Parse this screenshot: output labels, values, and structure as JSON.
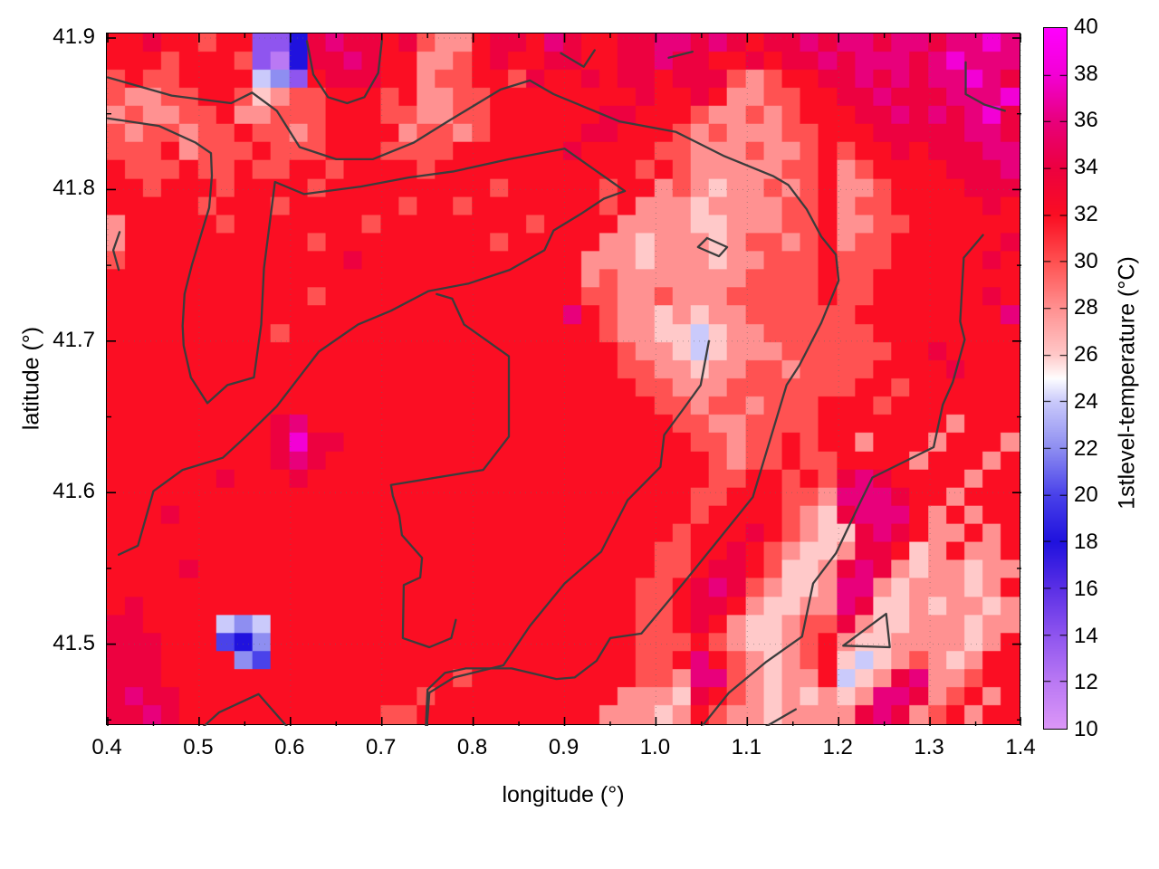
{
  "chart_data": {
    "type": "heatmap",
    "title": "",
    "xlabel": "longitude (°)",
    "ylabel": "latitude (°)",
    "colorbar_label": "1stlevel-temperature (°C)",
    "x_range": [
      0.399,
      1.4
    ],
    "y_range": [
      41.446,
      41.903
    ],
    "grid_on": true,
    "x_ticks": {
      "labels": [
        "0.4",
        "0.5",
        "0.6",
        "0.7",
        "0.8",
        "0.9",
        "1.0",
        "1.1",
        "1.2",
        "1.3",
        "1.4"
      ],
      "values": [
        0.4,
        0.5,
        0.6,
        0.7,
        0.8,
        0.9,
        1.0,
        1.1,
        1.2,
        1.3,
        1.4
      ],
      "minor_values": [
        0.45,
        0.55,
        0.65,
        0.75,
        0.85,
        0.95,
        1.05,
        1.15,
        1.25,
        1.35
      ]
    },
    "y_ticks": {
      "labels": [
        "41.9",
        "41.8",
        "41.7",
        "41.6",
        "41.5"
      ],
      "values": [
        41.9,
        41.8,
        41.7,
        41.6,
        41.5
      ],
      "minor_values": [
        41.85,
        41.75,
        41.65,
        41.55,
        41.45
      ]
    },
    "colorbar": {
      "min": 10,
      "max": 40,
      "tick_labels": [
        "40",
        "38",
        "36",
        "34",
        "32",
        "30",
        "28",
        "26",
        "24",
        "22",
        "20",
        "18",
        "16",
        "14",
        "12",
        "10"
      ],
      "tick_values": [
        40,
        38,
        36,
        34,
        32,
        30,
        28,
        26,
        24,
        22,
        20,
        18,
        16,
        14,
        12,
        10
      ],
      "palette_stops": [
        [
          10,
          "#DC97F8"
        ],
        [
          12,
          "#BA79F4"
        ],
        [
          14,
          "#8F55EF"
        ],
        [
          16,
          "#5B30E6"
        ],
        [
          18,
          "#2012DE"
        ],
        [
          20,
          "#4A42EA"
        ],
        [
          22,
          "#8E8EF1"
        ],
        [
          24,
          "#CACAFB"
        ],
        [
          25,
          "#FFFFFF"
        ],
        [
          26,
          "#FFC9C9"
        ],
        [
          28,
          "#FF9191"
        ],
        [
          30,
          "#FF5252"
        ],
        [
          32,
          "#FB0E23"
        ],
        [
          34,
          "#ED0140"
        ],
        [
          36,
          "#E8007B"
        ],
        [
          38,
          "#F300D5"
        ],
        [
          40,
          "#FF00FF"
        ]
      ]
    },
    "heatmap_grid": {
      "cols": 50,
      "rows": 38,
      "encoding": "one hex char per cell; temperature_C = 10 + 2 * hexValue",
      "rows_data": [
        "BBCBBABB224CDCCBCA99BCCBDCBBCCDDCDCBCCDCDDCDDCDDED",
        "BBBABBBA214CCDCBB99ABCBBCCBBCCDCCBBCBCCDCDDDCDEDDD",
        "ABAABBBB762BCCCBB9AABBACBBCBCCBCCCA9ABBCCDCDCDDEDC",
        "A99AABBA89AABBBAB99AABBBBBBBBCBBCB99AABBCCDCCCDDDE",
        "9A99AAB99AAABBBAA99AABBBBBBCCBBBA99A9ABBBCCDCDCDEC",
        "A9AA9AABAA9ABBBB9AA9ABBBBBCCBBBA9A999AABBBCCCCCDDC",
        "AAAB9AAABAAABBBAAAABBBBBBCBBBBAA999A99ABABBCBCCCDD",
        "BAAABAABAABBABBBBABBBBBBBBBBBABA99999AAB9ABBBBCCCD",
        "BBABBBABBBBABBBBBBBBBABBBBBABB9A9899A9AB99ABBBBCCC",
        "BBBBBABBBABBBBBBABBABBBBBBBAB99989999AAB9AABBBBBCB",
        "9BBBBBABBBBBBBABBBBBBBBABBBB999988999AAB99AABBBBBB",
        "9BBBBBBBBBBABBBBBBBBBABBBBB99899989AA9AB9AABBBBBBC",
        "ABBBBBBBBBBBBCBBBBBBBBBBBB9998999899AAABAAABBBBBCB",
        "BBBBBBBBBBBBBBBBBBBBBBBBBB9A9999999AAAABAABBBBBBBB",
        "BBBBBBBBBBBABBBBBBBBBBBBBBAA99A999AAAAABAABBBBBBCB",
        "BBBBBBBBBBBBBBBBBBBBBBBBBDBA9989899AAAAAABBBBBBBBD",
        "BBBBBBBBBABBBBBBBBBBBBBBBBBA99887899AAAAAABBBBBBBB",
        "BBBBBBBBBBBBBBBBBBBBBBBBBBBBA99878999AAAAAABBCBBBB",
        "BBBBBBBBBBBBBBBBBBBBBBBBBBBBAA99899AA9AAAABBBBCBBB",
        "BBBBBBBBBBBBBBBBBBBBBBBBBBBBBAA999AAAAAAABBABBBBBB",
        "BBBBBBBBBBBBBBBBBBBBBBBBBBBBBBAA9AA9AAABBBABBBBBBB",
        "BBBBBBBBBCDBBBBBBBBBBBBBBBBBBBBAA99AAAABBBBBBB9BBB",
        "BBBBBBBBBCECCBBBBBBBBBBBBBBBBBBBAA9AABABB9BBB9BBB9",
        "BBBBBBBBBCDCBBBBBBBBBBBBBBBBBBBBBA9AABAABBBB9BBB9B",
        "BBBBBBCBBBCBBBBBBBBBBBBBBBBBBBBBBAABBABACDCBBBB9BB",
        "BBBBBBBBBBBBBBBBBBBBBBBBBBBBBBBBAABBBAA9DDDCBB9BBB",
        "BBBCBBBBBBBBBBBBBBBBBBBBBBBBBBBBABBBBA98CDDDB9B9BB",
        "BBBBBBBBBBBBBBBBBBBBBBBBBBBBBBBABBBCBA988CDCB99B9B",
        "BBBBBBBBBBBBBBBBBBBBBBBBBBBBBBAABBCBA9889CCB89B99B",
        "BBBBCBBBBBBBBBBBBBBBBBBBBBBBBBAABCCBA889CDC9899899",
        "BBBBBBBBBBBBBBBBBBBBBBBBBBBBBAABCDCA9889DD9899989B",
        "BCBBBBBBBBBBBBBBBBBBBBBBBBBBBAABCCB98899DC88989989",
        "CCBBBB767BBBBBBBBBBBBBBBBBBBBAABCB9889AAC988999899",
        "CCCBBB546BBBBBBBBBBBBBBBBBBBBAAABA9889AB988999989B",
        "CCCBBBB65BBBBBBBBBBBBBBBBBBBBAABDBA989AB8789A989BB",
        "CCCBBBBBBBBBBBBBBBBABBBBBBBBBAA9DDA9899B789CD99ABB",
        "CDCCBBBBBBBBBBBBBABBBBBBBBBB9998CBA9898989DDC9AB9B",
        "CCDCBBBBBBBBBBBAABBBBBBBBBB99989BA9989999CDC9AB9BB"
      ]
    },
    "contours": {
      "color": "#3c3c3c",
      "width": 2.3,
      "lines": [
        {
          "name": "contour-top-long",
          "points": [
            [
              0.4,
              41.874
            ],
            [
              0.47,
              41.862
            ],
            [
              0.535,
              41.857
            ],
            [
              0.558,
              41.864
            ],
            [
              0.585,
              41.852
            ],
            [
              0.61,
              41.828
            ],
            [
              0.65,
              41.82
            ],
            [
              0.69,
              41.82
            ],
            [
              0.735,
              41.831
            ],
            [
              0.775,
              41.846
            ],
            [
              0.83,
              41.866
            ],
            [
              0.862,
              41.872
            ],
            [
              0.888,
              41.863
            ],
            [
              0.96,
              41.845
            ],
            [
              1.022,
              41.838
            ],
            [
              1.075,
              41.822
            ],
            [
              1.128,
              41.809
            ],
            [
              1.145,
              41.803
            ],
            [
              1.165,
              41.787
            ],
            [
              1.181,
              41.769
            ],
            [
              1.197,
              41.757
            ],
            [
              1.2,
              41.74
            ],
            [
              1.181,
              41.712
            ],
            [
              1.157,
              41.684
            ],
            [
              1.143,
              41.671
            ],
            [
              1.106,
              41.597
            ],
            [
              1.07,
              41.57
            ],
            [
              1.031,
              41.541
            ],
            [
              0.984,
              41.507
            ],
            [
              0.95,
              41.504
            ],
            [
              0.935,
              41.489
            ],
            [
              0.911,
              41.478
            ],
            [
              0.891,
              41.477
            ],
            [
              0.842,
              41.484
            ],
            [
              0.792,
              41.484
            ],
            [
              0.769,
              41.481
            ],
            [
              0.75,
              41.47
            ],
            [
              0.748,
              41.443
            ]
          ]
        },
        {
          "name": "contour-left-pocket",
          "points": [
            [
              0.4,
              41.847
            ],
            [
              0.456,
              41.842
            ],
            [
              0.496,
              41.831
            ],
            [
              0.513,
              41.824
            ],
            [
              0.514,
              41.809
            ],
            [
              0.511,
              41.788
            ],
            [
              0.492,
              41.75
            ],
            [
              0.484,
              41.731
            ],
            [
              0.482,
              41.71
            ],
            [
              0.483,
              41.697
            ],
            [
              0.491,
              41.676
            ],
            [
              0.509,
              41.659
            ],
            [
              0.531,
              41.671
            ],
            [
              0.56,
              41.676
            ],
            [
              0.568,
              41.711
            ],
            [
              0.571,
              41.748
            ],
            [
              0.583,
              41.805
            ],
            [
              0.615,
              41.797
            ],
            [
              0.677,
              41.802
            ],
            [
              0.73,
              41.808
            ],
            [
              0.779,
              41.812
            ],
            [
              0.839,
              41.82
            ],
            [
              0.9,
              41.827
            ],
            [
              0.966,
              41.799
            ],
            [
              0.943,
              41.794
            ],
            [
              0.918,
              41.784
            ],
            [
              0.888,
              41.773
            ],
            [
              0.878,
              41.76
            ],
            [
              0.84,
              41.747
            ],
            [
              0.795,
              41.738
            ],
            [
              0.751,
              41.733
            ],
            [
              0.71,
              41.72
            ],
            [
              0.674,
              41.711
            ],
            [
              0.631,
              41.693
            ],
            [
              0.585,
              41.657
            ],
            [
              0.551,
              41.637
            ],
            [
              0.526,
              41.623
            ],
            [
              0.482,
              41.615
            ],
            [
              0.45,
              41.601
            ],
            [
              0.433,
              41.565
            ],
            [
              0.412,
              41.559
            ]
          ]
        },
        {
          "name": "contour-center-loop",
          "points": [
            [
              0.76,
              41.731
            ],
            [
              0.777,
              41.728
            ],
            [
              0.79,
              41.711
            ],
            [
              0.839,
              41.69
            ],
            [
              0.839,
              41.637
            ],
            [
              0.811,
              41.615
            ],
            [
              0.71,
              41.605
            ],
            [
              0.712,
              41.598
            ],
            [
              0.719,
              41.585
            ],
            [
              0.722,
              41.572
            ],
            [
              0.744,
              41.557
            ],
            [
              0.742,
              41.544
            ],
            [
              0.724,
              41.539
            ],
            [
              0.723,
              41.504
            ],
            [
              0.752,
              41.498
            ],
            [
              0.776,
              41.504
            ],
            [
              0.781,
              41.516
            ]
          ]
        },
        {
          "name": "contour-right-diagonal",
          "points": [
            [
              1.058,
              41.7
            ],
            [
              1.049,
              41.671
            ],
            [
              1.031,
              41.656
            ],
            [
              1.009,
              41.638
            ],
            [
              1.005,
              41.617
            ],
            [
              0.969,
              41.595
            ],
            [
              0.94,
              41.561
            ],
            [
              0.9,
              41.54
            ],
            [
              0.862,
              41.512
            ],
            [
              0.833,
              41.486
            ],
            [
              0.779,
              41.478
            ],
            [
              0.752,
              41.468
            ],
            [
              0.749,
              41.443
            ]
          ]
        },
        {
          "name": "contour-far-right",
          "points": [
            [
              1.358,
              41.77
            ],
            [
              1.337,
              41.755
            ],
            [
              1.333,
              41.713
            ],
            [
              1.338,
              41.701
            ],
            [
              1.325,
              41.673
            ],
            [
              1.314,
              41.658
            ],
            [
              1.304,
              41.63
            ],
            [
              1.237,
              41.61
            ],
            [
              1.224,
              41.594
            ],
            [
              1.197,
              41.56
            ],
            [
              1.172,
              41.54
            ],
            [
              1.16,
              41.505
            ],
            [
              1.12,
              41.488
            ],
            [
              1.08,
              41.468
            ],
            [
              1.052,
              41.447
            ]
          ]
        },
        {
          "name": "contour-top-u",
          "points": [
            [
              0.618,
              41.898
            ],
            [
              0.625,
              41.876
            ],
            [
              0.641,
              41.861
            ],
            [
              0.662,
              41.857
            ],
            [
              0.681,
              41.861
            ],
            [
              0.696,
              41.877
            ],
            [
              0.7,
              41.898
            ]
          ]
        },
        {
          "name": "contour-topright-short",
          "points": [
            [
              1.339,
              41.884
            ],
            [
              1.339,
              41.863
            ],
            [
              1.36,
              41.856
            ],
            [
              1.382,
              41.852
            ]
          ]
        },
        {
          "name": "contour-top-stroke-1",
          "points": [
            [
              0.896,
              41.89
            ],
            [
              0.921,
              41.881
            ],
            [
              0.933,
              41.892
            ]
          ]
        },
        {
          "name": "contour-top-stroke-2",
          "points": [
            [
              1.014,
              41.887
            ],
            [
              1.04,
              41.891
            ]
          ]
        },
        {
          "name": "contour-diamond",
          "points": [
            [
              1.056,
              41.768
            ],
            [
              1.078,
              41.762
            ],
            [
              1.069,
              41.756
            ],
            [
              1.046,
              41.762
            ],
            [
              1.056,
              41.768
            ]
          ]
        },
        {
          "name": "contour-triangle",
          "points": [
            [
              1.252,
              41.52
            ],
            [
              1.256,
              41.498
            ],
            [
              1.205,
              41.499
            ],
            [
              1.252,
              41.52
            ]
          ]
        },
        {
          "name": "contour-left-paren",
          "points": [
            [
              0.413,
              41.772
            ],
            [
              0.406,
              41.76
            ],
            [
              0.412,
              41.747
            ]
          ]
        },
        {
          "name": "contour-bottomleft-diag",
          "points": [
            [
              0.5,
              41.443
            ],
            [
              0.522,
              41.455
            ],
            [
              0.565,
              41.467
            ],
            [
              0.6,
              41.443
            ]
          ]
        },
        {
          "name": "contour-bottomright-short",
          "points": [
            [
              1.113,
              41.443
            ],
            [
              1.153,
              41.457
            ]
          ]
        }
      ]
    },
    "colors": {
      "background": "#ffffff",
      "frame": "#000000",
      "grid_dots": "#666666",
      "contour": "#3c3c3c"
    }
  }
}
